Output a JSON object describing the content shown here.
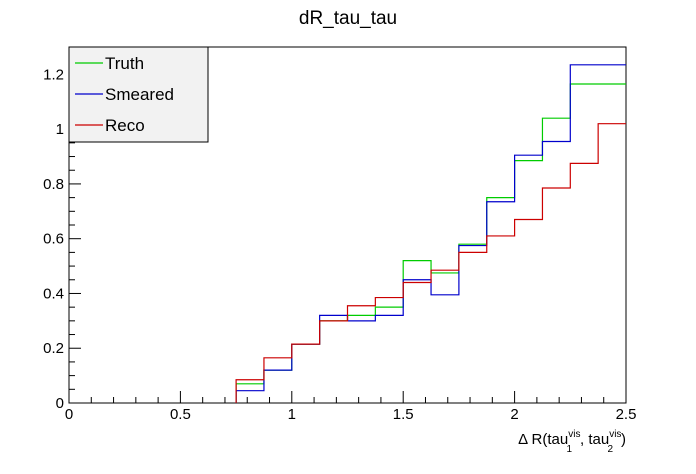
{
  "chart_data": {
    "type": "line",
    "title": "dR_tau_tau",
    "xlabel": {
      "main": "Δ R(tau",
      "sub1": "1",
      "sup1": "vis",
      "mid": ", tau",
      "sub2": "2",
      "sup2": "vis",
      "end": ")"
    },
    "ylabel": "",
    "xlim": [
      0,
      2.5
    ],
    "ylim": [
      0,
      1.3
    ],
    "x_ticks": [
      0,
      0.5,
      1,
      1.5,
      2,
      2.5
    ],
    "x_tick_labels": [
      "0",
      "0.5",
      "1",
      "1.5",
      "2",
      "2.5"
    ],
    "y_ticks": [
      0,
      0.2,
      0.4,
      0.6,
      0.8,
      1,
      1.2
    ],
    "y_tick_labels": [
      "0",
      "0.2",
      "0.4",
      "0.6",
      "0.8",
      "1",
      "1.2"
    ],
    "bin_edges": [
      0.75,
      0.875,
      1.0,
      1.125,
      1.25,
      1.375,
      1.5,
      1.625,
      1.75,
      1.875,
      2.0,
      2.125,
      2.25,
      2.375,
      2.5
    ],
    "series": [
      {
        "name": "Truth",
        "color": "#00cc00",
        "values": [
          0.07,
          0.12,
          0.215,
          0.3,
          0.32,
          0.35,
          0.52,
          0.475,
          0.58,
          0.75,
          0.885,
          1.04,
          1.165,
          1.165
        ]
      },
      {
        "name": "Smeared",
        "color": "#0000cc",
        "values": [
          0.045,
          0.12,
          0.215,
          0.32,
          0.3,
          0.32,
          0.45,
          0.395,
          0.575,
          0.735,
          0.905,
          0.955,
          1.235,
          1.235
        ]
      },
      {
        "name": "Reco",
        "color": "#cc0000",
        "values": [
          0.085,
          0.165,
          0.215,
          0.3,
          0.355,
          0.385,
          0.44,
          0.485,
          0.55,
          0.61,
          0.67,
          0.785,
          0.875,
          1.02
        ]
      }
    ],
    "legend": {
      "position": "top-left",
      "entries": [
        "Truth",
        "Smeared",
        "Reco"
      ]
    },
    "grid": false
  }
}
